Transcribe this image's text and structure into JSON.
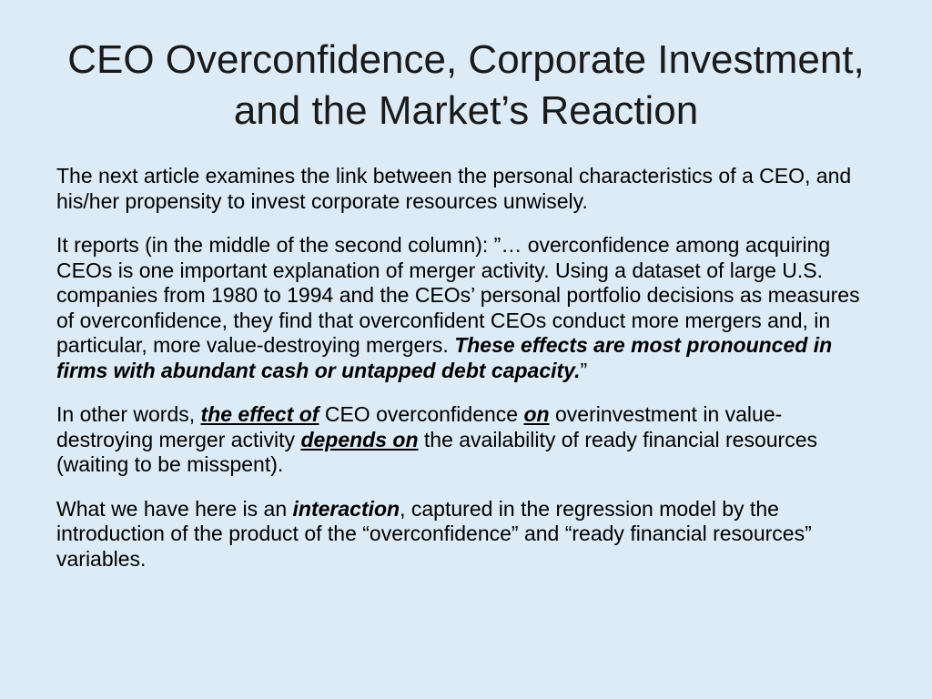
{
  "slide": {
    "title_line1": "CEO Overconfidence, Corporate Investment,",
    "title_line2": "and the Market’s Reaction",
    "p1": "The next article examines the link between the personal characteristics of a CEO, and his/her propensity to invest corporate resources unwisely.",
    "p2": {
      "a": "It reports (in the middle of the second column): ”… overconfidence among acquiring CEOs is one important explanation of merger activity. Using a dataset of large U.S. companies from 1980 to 1994 and the CEOs’ personal portfolio decisions as measures of overconfidence, they find that overconfident CEOs conduct more mergers and, in particular, more value-destroying mergers. ",
      "b": "These effects are most pronounced in firms with abundant cash or untapped debt capacity.",
      "c": "”"
    },
    "p3": {
      "a": "In other words, ",
      "b": "the effect of",
      "c": " CEO overconfidence ",
      "d": "on",
      "e": " overinvestment in value-destroying merger activity ",
      "f": "depends on",
      "g": " the availability of ready financial resources (waiting to be misspent)."
    },
    "p4": {
      "a": "What we have here is an ",
      "b": "interaction",
      "c": ", captured in the regression model by the introduction of the product of the “overconfidence” and “ready financial resources” variables."
    }
  }
}
